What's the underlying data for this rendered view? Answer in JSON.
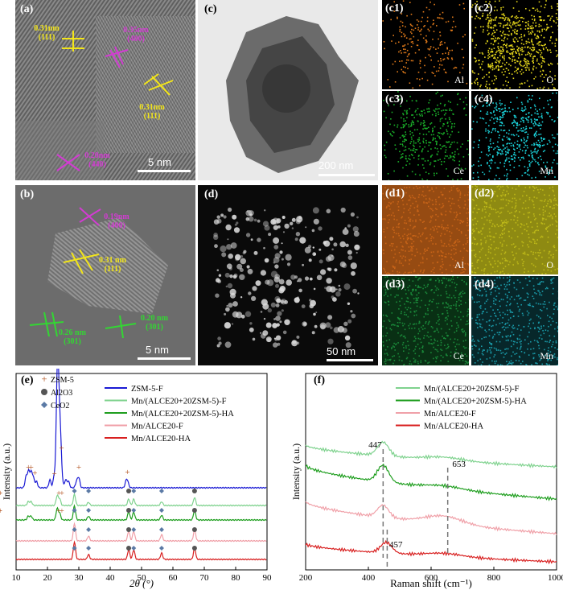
{
  "panels": {
    "a": {
      "label": "(a)",
      "scale_bar": "5 nm",
      "annotations": [
        {
          "text": "0.31nm (111)",
          "color": "yellow"
        },
        {
          "text": "0.35nm (400)",
          "color": "magenta"
        },
        {
          "text": "0.31nm (111)",
          "color": "yellow"
        },
        {
          "text": "0.20nm (440)",
          "color": "magenta"
        }
      ]
    },
    "b": {
      "label": "(b)",
      "scale_bar": "5 nm",
      "annotations": [
        {
          "text": "0.19nm (400)",
          "color": "magenta"
        },
        {
          "text": "0.31 nm (111)",
          "color": "yellow"
        },
        {
          "text": "0.26 nm (301)",
          "color": "green"
        },
        {
          "text": "0.20 nm (301)",
          "color": "green"
        }
      ]
    },
    "c": {
      "label": "(c)",
      "scale_bar": "200 nm"
    },
    "d": {
      "label": "(d)",
      "scale_bar": "50 nm"
    },
    "maps_c": [
      {
        "label": "(c1)",
        "element": "Al",
        "color": "#e07a1a"
      },
      {
        "label": "(c2)",
        "element": "O",
        "color": "#e0d21a"
      },
      {
        "label": "(c3)",
        "element": "Ce",
        "color": "#1ab02a"
      },
      {
        "label": "(c4)",
        "element": "Mn",
        "color": "#1ad0d8"
      }
    ],
    "maps_d": [
      {
        "label": "(d1)",
        "element": "Al",
        "color": "#c86418"
      },
      {
        "label": "(d2)",
        "element": "O",
        "color": "#bdb818"
      },
      {
        "label": "(d3)",
        "element": "Ce",
        "color": "#1a8a3a"
      },
      {
        "label": "(d4)",
        "element": "Mn",
        "color": "#1a9aa8"
      }
    ]
  },
  "chart_data": [
    {
      "panel": "(e)",
      "type": "line",
      "xlabel": "2θ (°)",
      "ylabel": "Intensity (a.u.)",
      "xlim": [
        10,
        90
      ],
      "xticks": [
        "10",
        "20",
        "30",
        "40",
        "50",
        "60",
        "70",
        "80",
        "90"
      ],
      "markers_legend": [
        {
          "symbol": "cross",
          "name": "ZSM-5",
          "color": "#b2511e"
        },
        {
          "symbol": "circle",
          "name": "Al2O3",
          "color": "#555555"
        },
        {
          "symbol": "diamond",
          "name": "CeO2",
          "color": "#5b7aa5"
        }
      ],
      "series": [
        {
          "name": "ZSM-5-F",
          "color": "#1a1ad4",
          "peaks": [
            [
              13.2,
              0.35
            ],
            [
              14.0,
              0.5
            ],
            [
              14.8,
              0.45
            ],
            [
              15.5,
              0.3
            ],
            [
              16.5,
              0.2
            ],
            [
              20.8,
              0.25
            ],
            [
              22.2,
              0.4
            ],
            [
              23.1,
              2.2
            ],
            [
              23.3,
              1.6
            ],
            [
              23.7,
              1.2
            ],
            [
              24.0,
              0.9
            ],
            [
              24.4,
              0.6
            ],
            [
              25.8,
              0.25
            ],
            [
              26.7,
              0.2
            ],
            [
              29.3,
              0.2
            ],
            [
              30.0,
              0.3
            ],
            [
              45.1,
              0.2
            ],
            [
              45.6,
              0.15
            ]
          ]
        },
        {
          "name": "Mn/(ALCE20+20ZSM-5)-F",
          "color": "#7fd28e",
          "peaks": [
            [
              13.9,
              0.12
            ],
            [
              14.8,
              0.12
            ],
            [
              23.1,
              0.3
            ],
            [
              23.9,
              0.2
            ],
            [
              28.6,
              0.35
            ],
            [
              33.1,
              0.1
            ],
            [
              45.9,
              0.2
            ],
            [
              47.5,
              0.2
            ],
            [
              56.4,
              0.12
            ],
            [
              66.9,
              0.25
            ]
          ]
        },
        {
          "name": "Mn/(ALCE20+20ZSM-5)-HA",
          "color": "#1e9e1e",
          "peaks": [
            [
              13.9,
              0.12
            ],
            [
              14.8,
              0.12
            ],
            [
              23.1,
              0.35
            ],
            [
              23.9,
              0.2
            ],
            [
              28.6,
              0.45
            ],
            [
              33.1,
              0.12
            ],
            [
              45.9,
              0.25
            ],
            [
              47.5,
              0.25
            ],
            [
              56.4,
              0.15
            ],
            [
              66.9,
              0.3
            ]
          ]
        },
        {
          "name": "Mn/ALCE20-F",
          "color": "#f0a0a8",
          "peaks": [
            [
              28.6,
              0.55
            ],
            [
              33.1,
              0.15
            ],
            [
              45.9,
              0.3
            ],
            [
              47.5,
              0.3
            ],
            [
              56.4,
              0.2
            ],
            [
              66.9,
              0.35
            ]
          ]
        },
        {
          "name": "Mn/ALCE20-HA",
          "color": "#d82020",
          "peaks": [
            [
              28.6,
              0.55
            ],
            [
              33.1,
              0.15
            ],
            [
              45.9,
              0.3
            ],
            [
              47.5,
              0.3
            ],
            [
              56.4,
              0.2
            ],
            [
              66.9,
              0.35
            ]
          ]
        }
      ]
    },
    {
      "panel": "(f)",
      "type": "line",
      "xlabel": "Raman shift (cm⁻¹)",
      "ylabel": "Intensity (a.u.)",
      "xlim": [
        200,
        1000
      ],
      "xticks": [
        "200",
        "400",
        "600",
        "800",
        "1000"
      ],
      "annotations": [
        {
          "text": "447",
          "x": 447
        },
        {
          "text": "653",
          "x": 653
        },
        {
          "text": "457",
          "x": 457
        }
      ],
      "series": [
        {
          "name": "Mn/(ALCE20+20ZSM-5)-F",
          "color": "#7fd28e",
          "peak": 447,
          "height": 0.45
        },
        {
          "name": "Mn/(ALCE20+20ZSM-5)-HA",
          "color": "#1e9e1e",
          "peak": 447,
          "height": 0.55
        },
        {
          "name": "Mn/ALCE20-F",
          "color": "#f0a0a8",
          "peak": 447,
          "height": 0.4
        },
        {
          "name": "Mn/ALCE20-HA",
          "color": "#d82020",
          "peak": 457,
          "height": 0.35
        }
      ]
    }
  ]
}
